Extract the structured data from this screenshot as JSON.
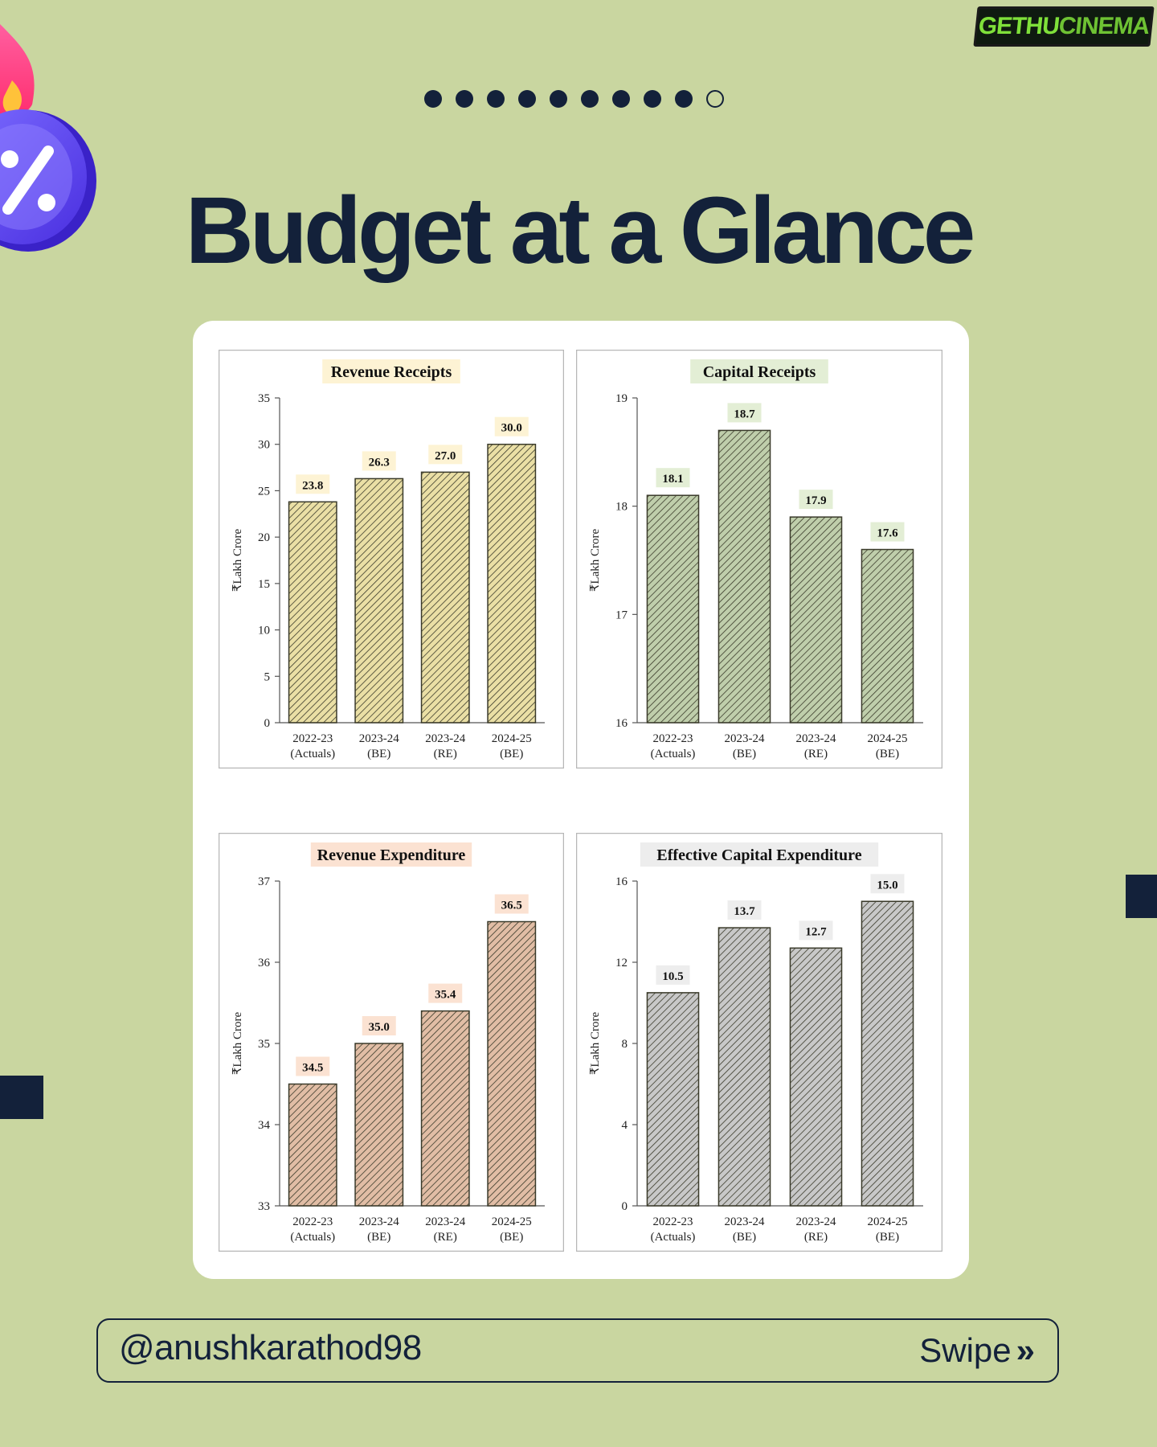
{
  "watermark": {
    "part1": "GETHU",
    "part2": "CINEMA"
  },
  "pagination": {
    "total": 10,
    "active_index": 9
  },
  "page": {
    "title": "Budget at a Glance"
  },
  "footer": {
    "handle": "@anushkarathod98",
    "swipe_label": "Swipe",
    "swipe_icon": "chevron-double-right-icon"
  },
  "colors": {
    "background": "#c9d6a0",
    "title": "#13213a",
    "revenue_receipts": "#d8c45a",
    "capital_receipts": "#8aa665",
    "revenue_expenditure": "#c8865a",
    "effective_capex": "#9a9a9a"
  },
  "chart_data": [
    {
      "type": "bar",
      "title": "Revenue Receipts",
      "ylabel": "₹Lakh Crore",
      "categories": [
        [
          "2022-23",
          "(Actuals)"
        ],
        [
          "2023-24",
          "(BE)"
        ],
        [
          "2023-24",
          "(RE)"
        ],
        [
          "2024-25",
          "(BE)"
        ]
      ],
      "values": [
        23.8,
        26.3,
        27.0,
        30.0
      ],
      "value_labels": [
        "23.8",
        "26.3",
        "27.0",
        "30.0"
      ],
      "ylim": [
        0,
        35
      ],
      "yticks": [
        0,
        5,
        10,
        15,
        20,
        25,
        30,
        35
      ],
      "color": "#d8c45a",
      "title_bg": "#fdf3d4",
      "label_bg": "#fdf3d4"
    },
    {
      "type": "bar",
      "title": "Capital Receipts",
      "ylabel": "₹Lakh Crore",
      "categories": [
        [
          "2022-23",
          "(Actuals)"
        ],
        [
          "2023-24",
          "(BE)"
        ],
        [
          "2023-24",
          "(RE)"
        ],
        [
          "2024-25",
          "(BE)"
        ]
      ],
      "values": [
        18.1,
        18.7,
        17.9,
        17.6
      ],
      "value_labels": [
        "18.1",
        "18.7",
        "17.9",
        "17.6"
      ],
      "ylim": [
        16,
        19
      ],
      "yticks": [
        16,
        17,
        18,
        19
      ],
      "color": "#8aa665",
      "title_bg": "#e3eed5",
      "label_bg": "#e3eed5"
    },
    {
      "type": "bar",
      "title": "Revenue Expenditure",
      "ylabel": "₹Lakh Crore",
      "categories": [
        [
          "2022-23",
          "(Actuals)"
        ],
        [
          "2023-24",
          "(BE)"
        ],
        [
          "2023-24",
          "(RE)"
        ],
        [
          "2024-25",
          "(BE)"
        ]
      ],
      "values": [
        34.5,
        35.0,
        35.4,
        36.5
      ],
      "value_labels": [
        "34.5",
        "35.0",
        "35.4",
        "36.5"
      ],
      "ylim": [
        33,
        37
      ],
      "yticks": [
        33,
        34,
        35,
        36,
        37
      ],
      "color": "#c8865a",
      "title_bg": "#fbe2d2",
      "label_bg": "#fbe2d2"
    },
    {
      "type": "bar",
      "title": "Effective Capital Expenditure",
      "ylabel": "₹Lakh Crore",
      "categories": [
        [
          "2022-23",
          "(Actuals)"
        ],
        [
          "2023-24",
          "(BE)"
        ],
        [
          "2023-24",
          "(RE)"
        ],
        [
          "2024-25",
          "(BE)"
        ]
      ],
      "values": [
        10.5,
        13.7,
        12.7,
        15.0
      ],
      "value_labels": [
        "10.5",
        "13.7",
        "12.7",
        "15.0"
      ],
      "ylim": [
        0,
        16
      ],
      "yticks": [
        0,
        4,
        8,
        12,
        16
      ],
      "color": "#9a9a9a",
      "title_bg": "#ededed",
      "label_bg": "#ededed"
    }
  ]
}
